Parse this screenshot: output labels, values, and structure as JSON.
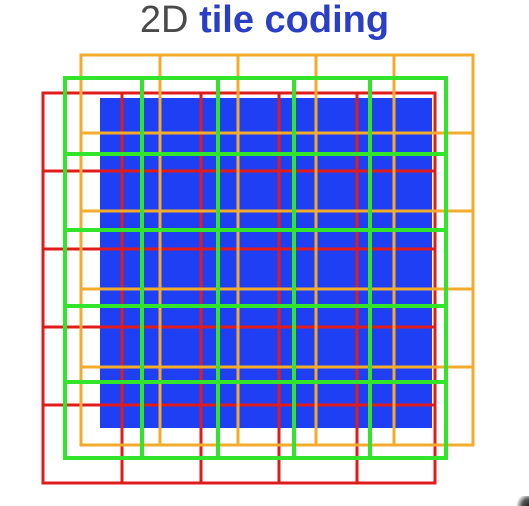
{
  "title": {
    "prefix": "2D",
    "emphasis": "tile coding"
  },
  "colors": {
    "title_plain": "#4a4a4a",
    "title_bold": "#2b3fc4",
    "state_space": "#1f3ff5",
    "tiling_1": "#e01b1b",
    "tiling_2": "#f2ab2b",
    "tiling_3": "#33e52a"
  },
  "diagram": {
    "tile_grid": "5x5",
    "tilings": [
      {
        "color_key": "tiling_1",
        "icon": "red-tiling-grid"
      },
      {
        "color_key": "tiling_2",
        "icon": "orange-tiling-grid"
      },
      {
        "color_key": "tiling_3",
        "icon": "green-tiling-grid"
      }
    ]
  }
}
